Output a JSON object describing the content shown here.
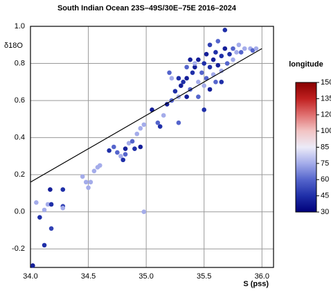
{
  "chart_data": {
    "type": "scatter",
    "title": "South Indian Ocean 23S–49S/30E–75E 2016–2024",
    "x_label": "S (pss)",
    "y_label": "δ18O",
    "xlim": [
      34,
      36.1
    ],
    "ylim": [
      -0.3,
      1.0
    ],
    "xticks": [
      {
        "value": 34,
        "label": "34.0"
      },
      34.5,
      {
        "value": 35,
        "label": "35.0"
      },
      35.5,
      {
        "value": 36,
        "label": "36.0"
      }
    ],
    "yticks": [
      -0.2,
      {
        "value": 0,
        "label": "0.0"
      },
      0.2,
      0.4,
      0.6,
      0.8,
      {
        "value": 1,
        "label": "1.0"
      }
    ],
    "grid": true,
    "fit_line": {
      "x": [
        34,
        36
      ],
      "y": [
        0.16,
        0.88
      ],
      "color": "#000000"
    },
    "colorbar": {
      "label": "longitude",
      "ticks": [
        30,
        45,
        60,
        75,
        85,
        100,
        120,
        135,
        150
      ],
      "colors": [
        "#00007a",
        "#1f2fa8",
        "#5565cc",
        "#a4acea",
        "#ecebf8",
        "#f2c4c4",
        "#e07070",
        "#c02020",
        "#880000"
      ]
    },
    "x": [
      34.02,
      34.05,
      34.08,
      34.12,
      34.12,
      34.15,
      34.18,
      34.17,
      34.18,
      34.28,
      34.28,
      34.28,
      34.45,
      34.48,
      34.5,
      34.52,
      34.55,
      34.58,
      34.6,
      34.68,
      34.72,
      34.75,
      34.78,
      34.8,
      34.82,
      34.82,
      34.85,
      34.88,
      34.9,
      34.92,
      34.95,
      34.98,
      34.95,
      34.98,
      35.05,
      35.1,
      35.12,
      35.15,
      35.18,
      35.22,
      35.25,
      35.28,
      35.28,
      35.22,
      35.3,
      35.32,
      35.35,
      35.38,
      35.4,
      35.42,
      35.45,
      35.45,
      35.48,
      35.5,
      35.5,
      35.52,
      35.52,
      35.55,
      35.55,
      35.58,
      35.58,
      35.6,
      35.6,
      35.62,
      35.62,
      35.65,
      35.65,
      35.68,
      35.68,
      35.7,
      35.72,
      35.75,
      35.75,
      35.78,
      35.8,
      35.82,
      35.85,
      35.9,
      35.92,
      35.95,
      35.35,
      35.28,
      35.2,
      35.38,
      35.45,
      35.5,
      35.42,
      35.55,
      35.65,
      35.35
    ],
    "y": [
      -0.29,
      0.05,
      -0.03,
      0.01,
      -0.18,
      0.04,
      -0.09,
      0.12,
      0.04,
      0.12,
      0.03,
      0.02,
      0.19,
      0.16,
      0.13,
      0.16,
      0.22,
      0.24,
      0.25,
      0.33,
      0.35,
      0.32,
      0.3,
      0.28,
      0.31,
      0.34,
      0.37,
      0.38,
      0.34,
      0.42,
      0.45,
      0,
      0.35,
      0.47,
      0.55,
      0.48,
      0.46,
      0.52,
      0.58,
      0.6,
      0.65,
      0.62,
      0.48,
      0.72,
      0.68,
      0.7,
      0.72,
      0.66,
      0.75,
      0.78,
      0.7,
      0.82,
      0.75,
      0.8,
      0.68,
      0.85,
      0.72,
      0.78,
      0.9,
      0.82,
      0.74,
      0.86,
      0.7,
      0.79,
      0.92,
      0.84,
      0.76,
      0.88,
      0.98,
      0.8,
      0.85,
      0.82,
      0.88,
      0.86,
      0.9,
      0.86,
      0.88,
      0.88,
      0.87,
      0.88,
      0.62,
      0.72,
      0.75,
      0.82,
      0.62,
      0.55,
      0.8,
      0.66,
      0.7,
      0.78
    ],
    "c": [
      40,
      75,
      45,
      75,
      45,
      75,
      50,
      40,
      45,
      45,
      50,
      75,
      75,
      75,
      75,
      75,
      75,
      75,
      75,
      45,
      60,
      60,
      75,
      45,
      60,
      40,
      75,
      60,
      45,
      75,
      75,
      75,
      40,
      75,
      40,
      60,
      45,
      75,
      40,
      60,
      45,
      75,
      60,
      75,
      40,
      45,
      40,
      60,
      45,
      40,
      75,
      40,
      60,
      45,
      75,
      40,
      60,
      45,
      50,
      40,
      75,
      45,
      60,
      40,
      60,
      45,
      75,
      40,
      45,
      60,
      45,
      75,
      60,
      75,
      75,
      60,
      75,
      75,
      60,
      75,
      40,
      45,
      60,
      40,
      60,
      45,
      75,
      40,
      45,
      60
    ]
  }
}
